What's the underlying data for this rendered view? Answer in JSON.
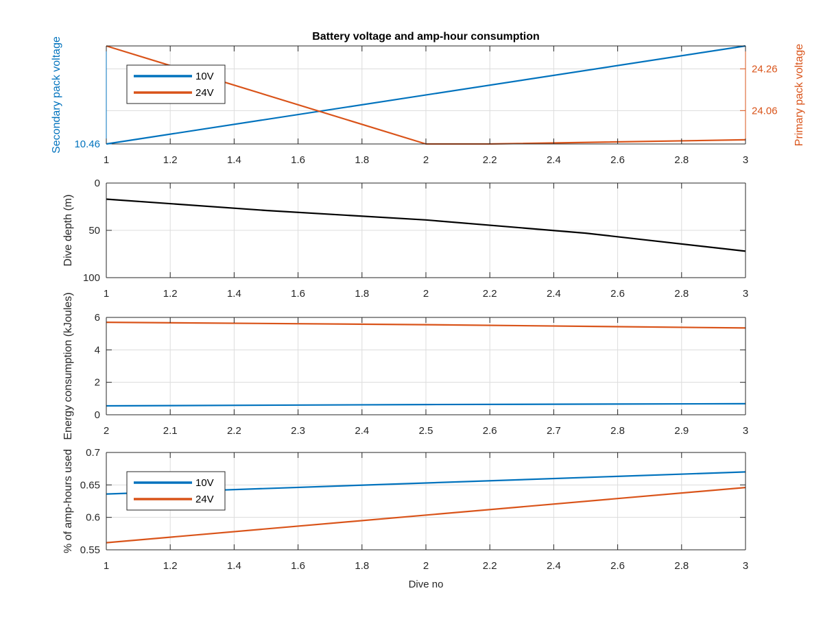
{
  "figure": {
    "background": "#ffffff",
    "axes_color": "#262626",
    "grid_color": "#dcdcdc"
  },
  "chart_data": [
    {
      "id": "voltage",
      "type": "line",
      "title": "Battery voltage and amp-hour consumption",
      "xlabel": "",
      "ylabel": "Secondary pack voltage",
      "ylabel_right": "Primary pack voltage",
      "xlim": [
        1,
        3
      ],
      "xticks": [
        1,
        1.2,
        1.4,
        1.6,
        1.8,
        2,
        2.2,
        2.4,
        2.6,
        2.8,
        3
      ],
      "xtick_labels": [
        "1",
        "1.2",
        "1.4",
        "1.6",
        "1.8",
        "2",
        "2.2",
        "2.4",
        "2.6",
        "2.8",
        "3"
      ],
      "left_axis": {
        "color": "#0072BD",
        "ylim": [
          10.46,
          10.5
        ],
        "yticks": [
          10.46
        ],
        "ytick_labels": [
          "10.46"
        ]
      },
      "right_axis": {
        "color": "#D95319",
        "ylim": [
          23.9,
          24.37
        ],
        "yticks": [
          24.06,
          24.26
        ],
        "ytick_labels": [
          "24.06",
          "24.26"
        ]
      },
      "grid": true,
      "legend": {
        "placement": "top-left",
        "entries": [
          "10V",
          "24V"
        ]
      },
      "series": [
        {
          "name": "10V",
          "axis": "left",
          "color": "#0072BD",
          "x": [
            1,
            3
          ],
          "y": [
            10.46,
            10.5
          ]
        },
        {
          "name": "24V",
          "axis": "right",
          "color": "#D95319",
          "x": [
            1,
            2,
            2.2,
            3
          ],
          "y": [
            24.37,
            23.9,
            23.9,
            23.92
          ]
        }
      ]
    },
    {
      "id": "depth",
      "type": "line",
      "title": "",
      "xlabel": "",
      "ylabel": "Dive depth (m)",
      "xlim": [
        1,
        3
      ],
      "xticks": [
        1,
        1.2,
        1.4,
        1.6,
        1.8,
        2,
        2.2,
        2.4,
        2.6,
        2.8,
        3
      ],
      "xtick_labels": [
        "1",
        "1.2",
        "1.4",
        "1.6",
        "1.8",
        "2",
        "2.2",
        "2.4",
        "2.6",
        "2.8",
        "3"
      ],
      "ylim": [
        0,
        100
      ],
      "y_reversed": true,
      "yticks": [
        0,
        50,
        100
      ],
      "ytick_labels": [
        "0",
        "50",
        "100"
      ],
      "grid": true,
      "series": [
        {
          "color": "#000000",
          "x": [
            1,
            1.5,
            2,
            2.5,
            3
          ],
          "y": [
            17,
            29,
            39,
            53,
            72
          ]
        }
      ]
    },
    {
      "id": "energy",
      "type": "line",
      "title": "",
      "xlabel": "",
      "ylabel": "Energy consumption (kJoules)",
      "xlim": [
        2,
        3
      ],
      "xticks": [
        2,
        2.1,
        2.2,
        2.3,
        2.4,
        2.5,
        2.6,
        2.7,
        2.8,
        2.9,
        3
      ],
      "xtick_labels": [
        "2",
        "2.1",
        "2.2",
        "2.3",
        "2.4",
        "2.5",
        "2.6",
        "2.7",
        "2.8",
        "2.9",
        "3"
      ],
      "ylim": [
        0,
        6
      ],
      "yticks": [
        0,
        2,
        4,
        6
      ],
      "ytick_labels": [
        "0",
        "2",
        "4",
        "6"
      ],
      "grid": true,
      "series": [
        {
          "color": "#D95319",
          "x": [
            2,
            2.5,
            3
          ],
          "y": [
            5.7,
            5.55,
            5.35
          ]
        },
        {
          "color": "#0072BD",
          "x": [
            2,
            2.5,
            3
          ],
          "y": [
            0.55,
            0.63,
            0.68
          ]
        }
      ]
    },
    {
      "id": "amphours",
      "type": "line",
      "title": "",
      "xlabel": "Dive no",
      "ylabel": "% of amp-hours used",
      "xlim": [
        1,
        3
      ],
      "xticks": [
        1,
        1.2,
        1.4,
        1.6,
        1.8,
        2,
        2.2,
        2.4,
        2.6,
        2.8,
        3
      ],
      "xtick_labels": [
        "1",
        "1.2",
        "1.4",
        "1.6",
        "1.8",
        "2",
        "2.2",
        "2.4",
        "2.6",
        "2.8",
        "3"
      ],
      "ylim": [
        0.55,
        0.7
      ],
      "yticks": [
        0.55,
        0.6,
        0.65,
        0.7
      ],
      "ytick_labels": [
        "0.55",
        "0.6",
        "0.65",
        "0.7"
      ],
      "grid": true,
      "legend": {
        "placement": "top-left",
        "entries": [
          "10V",
          "24V"
        ]
      },
      "series": [
        {
          "name": "10V",
          "color": "#0072BD",
          "x": [
            1,
            3
          ],
          "y": [
            0.636,
            0.67
          ]
        },
        {
          "name": "24V",
          "color": "#D95319",
          "x": [
            1,
            3
          ],
          "y": [
            0.561,
            0.646
          ]
        }
      ]
    }
  ]
}
